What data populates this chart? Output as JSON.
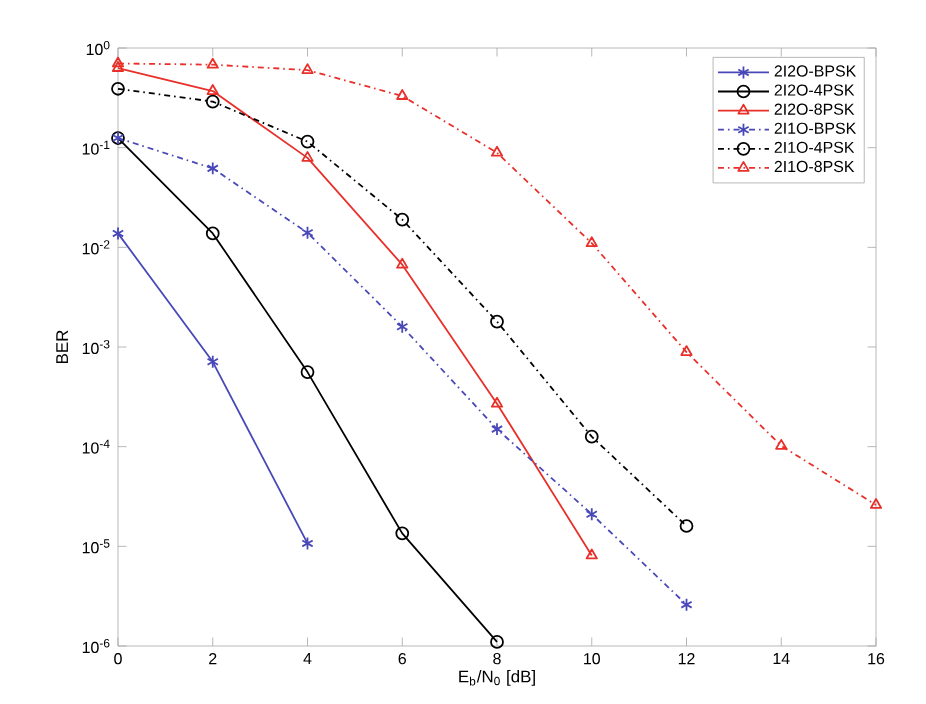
{
  "chart_data": {
    "type": "line",
    "xlabel": "E$_{b}$/N$_{0}$ [dB]",
    "ylabel": "BER",
    "log": "y",
    "legend": "top right",
    "grid": false,
    "xlim": [
      0,
      16
    ],
    "xticks": [
      0,
      2,
      4,
      6,
      8,
      10,
      12,
      14,
      16
    ],
    "ylim": [
      1e-06,
      1
    ],
    "yticks": [
      {
        "value": 1,
        "label": "10$^{0}$"
      },
      {
        "value": 0.1,
        "label": "10$^{-1}$"
      },
      {
        "value": 0.01,
        "label": "10$^{-2}$"
      },
      {
        "value": 0.001,
        "label": "10$^{-3}$"
      },
      {
        "value": 0.0001,
        "label": "10$^{-4}$"
      },
      {
        "value": 1e-05,
        "label": "10$^{-5}$"
      },
      {
        "value": 1e-06,
        "label": "10$^{-6}$"
      }
    ],
    "series": [
      {
        "name": "2I2O-BPSK",
        "color": "#4848b8",
        "marker": "cross",
        "line_style": "solid",
        "x": [
          0,
          2,
          4
        ],
        "values": [
          0.0138,
          0.00071,
          1.07e-05
        ]
      },
      {
        "name": "2I2O-4PSK",
        "color": "#000000",
        "marker": "circle",
        "line_style": "solid",
        "x": [
          0,
          2,
          4,
          6,
          8
        ],
        "values": [
          0.125,
          0.0138,
          0.00056,
          1.35e-05,
          1.1e-06
        ]
      },
      {
        "name": "2I2O-8PSK",
        "color": "#e8302a",
        "marker": "triangle",
        "line_style": "solid",
        "x": [
          0,
          2,
          4,
          6,
          8,
          10
        ],
        "values": [
          0.63,
          0.37,
          0.079,
          0.0067,
          0.00027,
          8.1e-06
        ]
      },
      {
        "name": "2I1O-BPSK",
        "color": "#4848b8",
        "marker": "cross",
        "line_style": "dashdot",
        "x": [
          0,
          2,
          4,
          6,
          8,
          10,
          12
        ],
        "values": [
          0.125,
          0.062,
          0.014,
          0.0016,
          0.00015,
          2.1e-05,
          2.6e-06
        ]
      },
      {
        "name": "2I1O-4PSK",
        "color": "#000000",
        "marker": "circle",
        "line_style": "dashdot",
        "x": [
          0,
          2,
          4,
          6,
          8,
          10,
          12
        ],
        "values": [
          0.39,
          0.29,
          0.115,
          0.019,
          0.0018,
          0.000126,
          1.6e-05
        ]
      },
      {
        "name": "2I1O-8PSK",
        "color": "#e8302a",
        "marker": "triangle",
        "line_style": "dashdot",
        "x": [
          0,
          2,
          4,
          6,
          8,
          10,
          12,
          14,
          16
        ],
        "values": [
          0.7,
          0.68,
          0.6,
          0.33,
          0.089,
          0.011,
          0.00089,
          0.000102,
          2.6e-05
        ]
      }
    ]
  }
}
